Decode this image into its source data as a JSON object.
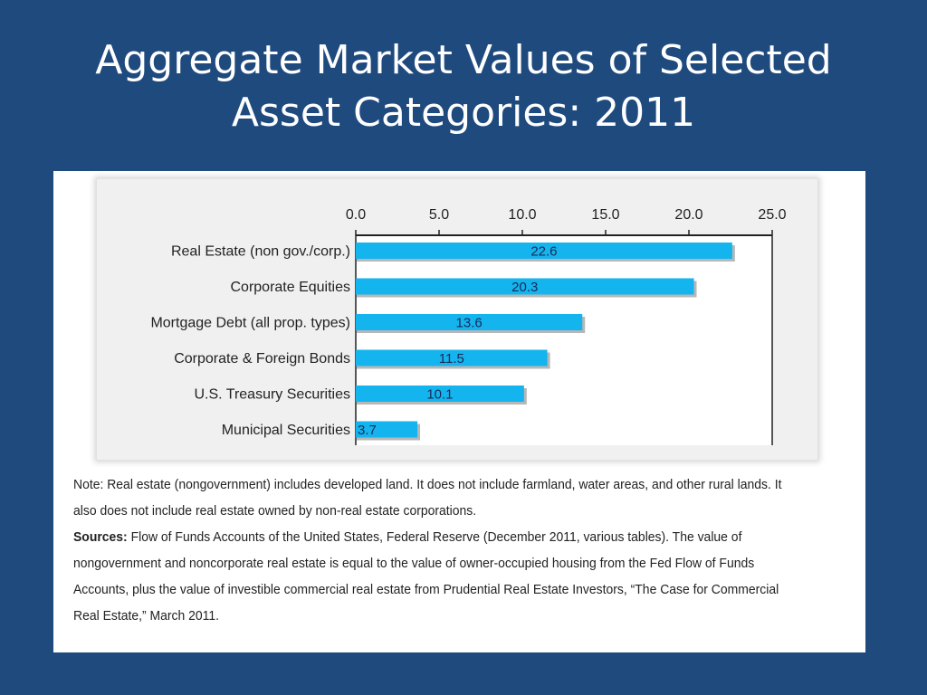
{
  "slide": {
    "title_line1": "Aggregate Market Values of Selected",
    "title_line2": "Asset Categories: 2011"
  },
  "colors": {
    "background": "#1f4a7e",
    "bar": "#14b4ee",
    "bar_label": "#1b2a55"
  },
  "chart_data": {
    "type": "bar",
    "orientation": "horizontal",
    "categories": [
      "Real Estate (non gov./corp.)",
      "Corporate Equities",
      "Mortgage Debt (all prop. types)",
      "Corporate & Foreign Bonds",
      "U.S. Treasury Securities",
      "Municipal Securities"
    ],
    "values": [
      22.6,
      20.3,
      13.6,
      11.5,
      10.1,
      3.7
    ],
    "value_labels": [
      "22.6",
      "20.3",
      "13.6",
      "11.5",
      "10.1",
      "3.7"
    ],
    "xlim": [
      0,
      25
    ],
    "ticks": [
      0,
      5,
      10,
      15,
      20,
      25
    ],
    "tick_labels": [
      "0.0",
      "5.0",
      "10.0",
      "15.0",
      "20.0",
      "25.0"
    ],
    "axis_position": "top",
    "grid": false,
    "legend": "none"
  },
  "notes": {
    "note_label": "Note:",
    "note_text": "Real estate (nongovernment) includes developed land. It does not include farmland, water areas, and other rural lands. It also does not include real estate owned by non-real estate corporations.",
    "sources_label": "Sources:",
    "sources_text": "Flow of Funds Accounts of the United States, Federal Reserve (December 2011, various tables). The value of nongovernment and noncorporate real estate is equal to the value of owner-occupied housing from the Fed Flow of Funds Accounts, plus the value of investible commercial real estate from Prudential Real Estate Investors, “The Case for Commercial Real Estate,” March 2011."
  }
}
